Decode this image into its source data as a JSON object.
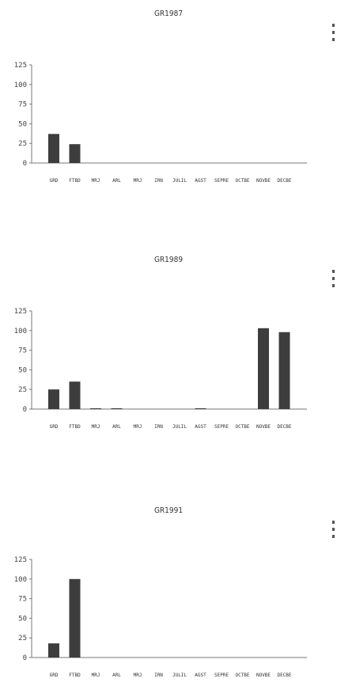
{
  "chart_data": [
    {
      "type": "bar",
      "title": "GR1987",
      "categories": [
        "GRD",
        "FTBD",
        "MRJ",
        "ARL",
        "MRJ",
        "IRN",
        "JULIL",
        "AGST",
        "SEPRE",
        "OCTBE",
        "NOVBE",
        "DECBE"
      ],
      "values": [
        37,
        24,
        0,
        0,
        0,
        0,
        0,
        0,
        0,
        0,
        0,
        0
      ],
      "ylim": [
        0,
        125
      ],
      "yticks": [
        0,
        25,
        50,
        75,
        100,
        125
      ],
      "xlabel": "",
      "ylabel": ""
    },
    {
      "type": "bar",
      "title": "GR1989",
      "categories": [
        "GRD",
        "FTBD",
        "MRJ",
        "ARL",
        "MRJ",
        "IRN",
        "JULIL",
        "AGST",
        "SEPRE",
        "OCTBE",
        "NOVBE",
        "DECBE"
      ],
      "values": [
        25,
        35,
        1,
        1,
        0,
        0,
        0,
        1,
        0,
        0,
        103,
        98
      ],
      "ylim": [
        0,
        125
      ],
      "yticks": [
        0,
        25,
        50,
        75,
        100,
        125
      ],
      "xlabel": "",
      "ylabel": ""
    },
    {
      "type": "bar",
      "title": "GR1991",
      "categories": [
        "GRD",
        "FTBD",
        "MRJ",
        "ARL",
        "MRJ",
        "IRN",
        "JULIL",
        "AGST",
        "SEPRE",
        "OCTBE",
        "NOVBE",
        "DECBE"
      ],
      "values": [
        18,
        100,
        0,
        0,
        0,
        0,
        0,
        0,
        0,
        0,
        0,
        0
      ],
      "ylim": [
        0,
        125
      ],
      "yticks": [
        0,
        25,
        50,
        75,
        100,
        125
      ],
      "xlabel": "",
      "ylabel": ""
    }
  ],
  "colors": {
    "bar": "#3d3d3d",
    "axis": "#777777",
    "marker": "#555555"
  }
}
